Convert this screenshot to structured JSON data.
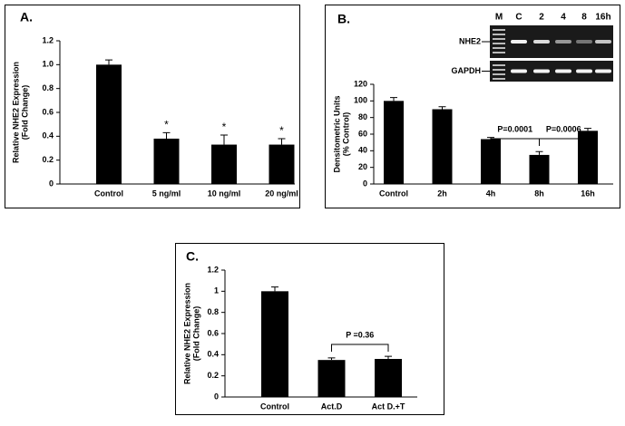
{
  "chart_data": [
    {
      "type": "bar",
      "title": "A.",
      "ylabel": [
        "Relative NHE2 Expression",
        "(Fold Change)"
      ],
      "categories": [
        "Control",
        "5 ng/ml",
        "10 ng/ml",
        "20 ng/ml"
      ],
      "values": [
        1.0,
        0.38,
        0.33,
        0.33
      ],
      "errors": [
        0.04,
        0.05,
        0.08,
        0.05
      ],
      "significance": [
        null,
        "*",
        "*",
        "*"
      ],
      "color": "#000000",
      "ylim": [
        0,
        1.2
      ],
      "yticks": [
        0,
        0.2,
        0.4,
        0.6,
        0.8,
        {
          "value": 1,
          "label": "1.0"
        },
        1.2
      ]
    },
    {
      "type": "bar",
      "title": "B.",
      "ylabel": [
        "Densitometric Units",
        "(% Control)"
      ],
      "categories": [
        "Control",
        "2h",
        "4h",
        "8h",
        "16h"
      ],
      "values": [
        100,
        90,
        54,
        35,
        64
      ],
      "errors": [
        4,
        3,
        2,
        4,
        3
      ],
      "comparisons": [
        {
          "text": "P=0.0001",
          "categories": [
            "4h",
            "8h"
          ]
        },
        {
          "text": "P=0.0006",
          "categories": [
            "8h",
            "16h"
          ]
        }
      ],
      "gel": {
        "lanes": [
          "M",
          "C",
          "2",
          "4",
          "8",
          "16h"
        ],
        "rows": [
          "NHE2",
          "GAPDH"
        ]
      },
      "color": "#000000",
      "ylim": [
        0,
        120
      ],
      "yticks": [
        0,
        20,
        40,
        60,
        80,
        100,
        120
      ]
    },
    {
      "type": "bar",
      "title": "C.",
      "ylabel": [
        "Relative NHE2 Expression",
        "(Fold Change)"
      ],
      "categories": [
        "Control",
        "Act.D",
        "Act D.+T"
      ],
      "values": [
        1.0,
        0.35,
        0.36
      ],
      "errors": [
        0.04,
        0.02,
        0.025
      ],
      "comparisons": [
        {
          "text": "P =0.36",
          "categories": [
            "Act.D",
            "Act D.+T"
          ]
        }
      ],
      "color": "#000000",
      "ylim": [
        0,
        1.2
      ],
      "yticks": [
        0,
        0.2,
        0.4,
        0.6,
        0.8,
        1,
        1.2
      ]
    }
  ]
}
